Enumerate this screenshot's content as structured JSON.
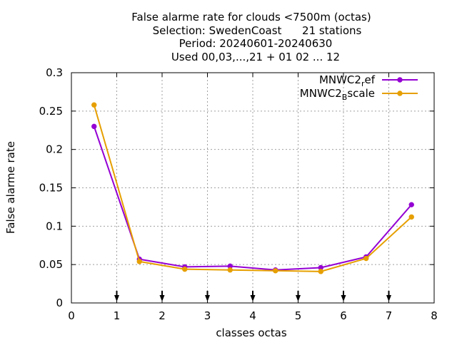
{
  "chart_data": {
    "type": "line",
    "title_lines": [
      "False alarme rate  for clouds <7500m (octas)",
      "Selection: SwedenCoast      21 stations",
      "Period: 20240601-20240630",
      "Used 00,03,...,21 + 01 02 ... 12"
    ],
    "xlabel": "classes octas",
    "ylabel": "False alarme rate",
    "xlim": [
      0,
      8
    ],
    "ylim": [
      0,
      0.3
    ],
    "xticks": [
      0,
      1,
      2,
      3,
      4,
      5,
      6,
      7,
      8
    ],
    "yticks": [
      0,
      0.05,
      0.1,
      0.15,
      0.2,
      0.25,
      0.3
    ],
    "xtick_labels": [
      "0",
      "1",
      "2",
      "3",
      "4",
      "5",
      "6",
      "7",
      "8"
    ],
    "ytick_labels": [
      "0",
      "0.05",
      "0.1",
      "0.15",
      "0.2",
      "0.25",
      "0.3"
    ],
    "grid": true,
    "legend_position": "top-right",
    "x": [
      0.5,
      1.5,
      2.5,
      3.5,
      4.5,
      5.5,
      6.5,
      7.5
    ],
    "series": [
      {
        "legend_main": "MNWC2",
        "legend_sub": "r",
        "legend_rest": "ef",
        "color": "#9400d3",
        "values": [
          0.23,
          0.057,
          0.047,
          0.048,
          0.043,
          0.046,
          0.06,
          0.128
        ]
      },
      {
        "legend_main": "MNWC2",
        "legend_sub": "B",
        "legend_rest": "scale",
        "color": "#e69f00",
        "values": [
          0.258,
          0.054,
          0.044,
          0.043,
          0.042,
          0.041,
          0.058,
          0.112
        ]
      }
    ],
    "bottom_arrow_x": [
      1,
      2,
      3,
      4,
      5,
      6,
      7
    ]
  }
}
